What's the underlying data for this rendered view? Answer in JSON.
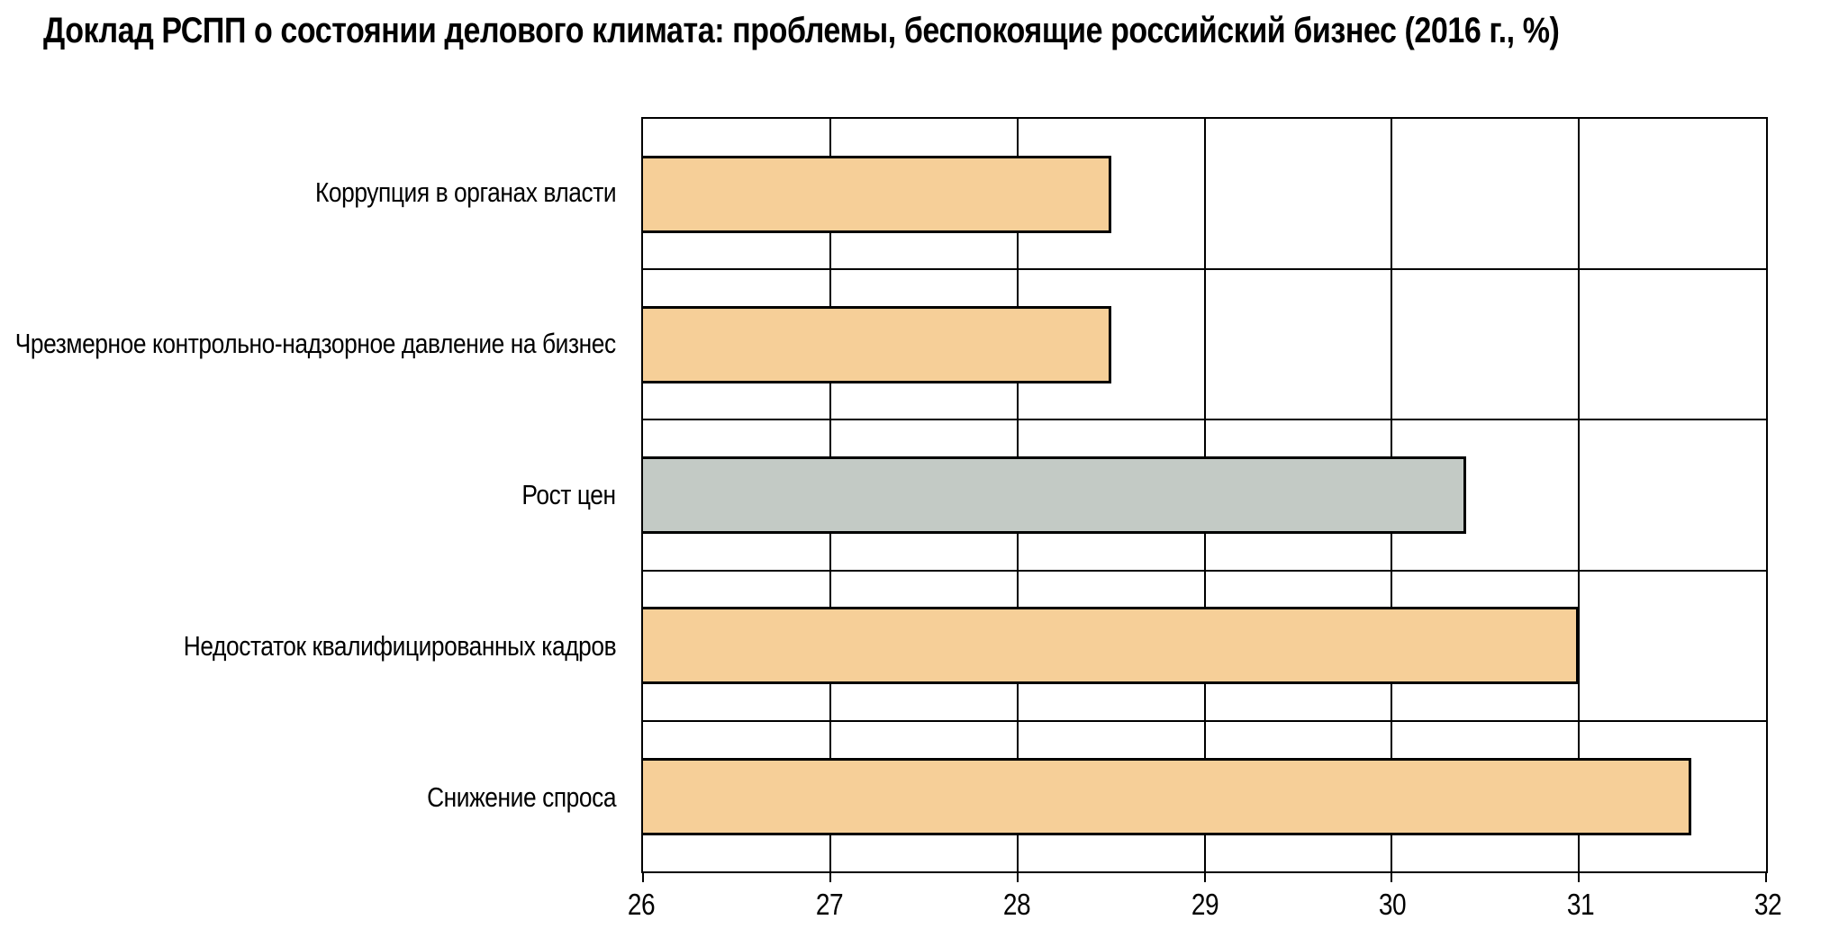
{
  "title": "Доклад РСПП о состоянии делового климата: проблемы, беспокоящие российский бизнес (2016 г., %)",
  "colors": {
    "bar_default": "#f6cf98",
    "bar_alt": "#c3cac5",
    "line": "#000000",
    "background": "#ffffff"
  },
  "chart_data": {
    "type": "bar",
    "orientation": "horizontal",
    "title": "Доклад РСПП о состоянии делового климата: проблемы, беспокоящие российский бизнес (2016 г., %)",
    "categories": [
      "Коррупция в органах власти",
      "Чрезмерное контрольно-надзорное давление на бизнес",
      "Рост цен",
      "Недостаток квалифицированных кадров",
      "Снижение спроса"
    ],
    "values": [
      28.5,
      28.5,
      30.4,
      31,
      31.6
    ],
    "bar_colors": [
      "#f6cf98",
      "#f6cf98",
      "#c3cac5",
      "#f6cf98",
      "#f6cf98"
    ],
    "xlabel": "",
    "ylabel": "",
    "xlim": [
      26,
      32
    ],
    "x_ticks": [
      26,
      27,
      28,
      29,
      30,
      31,
      32
    ],
    "grid": true,
    "legend": false
  }
}
